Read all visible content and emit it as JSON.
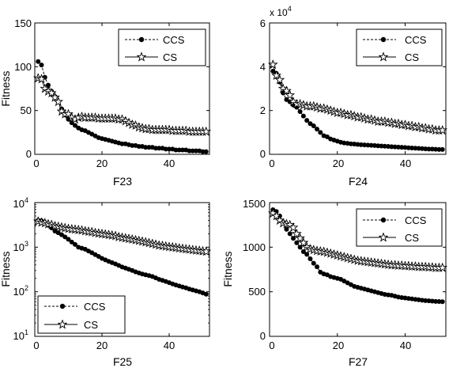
{
  "chart_data": [
    {
      "type": "line",
      "xlabel": "F23",
      "ylabel": "Fitness",
      "xlim": [
        0,
        52
      ],
      "ylim": [
        0,
        150
      ],
      "xticks": [
        "0",
        "20",
        "40"
      ],
      "yticks": [
        "0",
        "50",
        "100",
        "150"
      ],
      "y_scale": "linear",
      "legend_placement": "top-right",
      "series": [
        {
          "name": "CCS",
          "marker": "filled-dot",
          "line": "dashed",
          "x": [
            1,
            2,
            3,
            4,
            5,
            6,
            7,
            8,
            9,
            10,
            11,
            12,
            13,
            14,
            15,
            16,
            17,
            18,
            19,
            20,
            21,
            22,
            23,
            24,
            25,
            26,
            27,
            28,
            29,
            30,
            31,
            32,
            33,
            34,
            35,
            36,
            37,
            38,
            39,
            40,
            41,
            42,
            43,
            44,
            45,
            46,
            47,
            48,
            49,
            50,
            51
          ],
          "values": [
            106,
            102,
            88,
            79,
            72,
            66,
            60,
            52,
            45,
            40,
            36,
            33,
            30,
            28,
            27,
            25,
            23,
            21,
            19,
            18,
            17,
            16,
            15,
            14,
            13,
            12,
            12,
            11,
            10,
            10,
            9,
            9,
            8,
            8,
            8,
            7,
            7,
            7,
            6,
            6,
            6,
            5,
            5,
            5,
            5,
            4,
            4,
            4,
            4,
            3,
            3
          ]
        },
        {
          "name": "CS",
          "marker": "star",
          "line": "solid",
          "x": [
            1,
            2,
            3,
            4,
            5,
            6,
            7,
            8,
            9,
            10,
            11,
            12,
            13,
            14,
            15,
            16,
            17,
            18,
            19,
            20,
            21,
            22,
            23,
            24,
            25,
            26,
            27,
            28,
            29,
            30,
            31,
            32,
            33,
            34,
            35,
            36,
            37,
            38,
            39,
            40,
            41,
            42,
            43,
            44,
            45,
            46,
            47,
            48,
            49,
            50,
            51
          ],
          "values": [
            87,
            86,
            75,
            72,
            70,
            65,
            60,
            49,
            46,
            46,
            42,
            40,
            42,
            43,
            42,
            42,
            42,
            42,
            41,
            41,
            41,
            41,
            41,
            41,
            40,
            40,
            38,
            36,
            34,
            33,
            31,
            30,
            29,
            29,
            28,
            28,
            28,
            28,
            28,
            28,
            27,
            27,
            27,
            27,
            27,
            26,
            26,
            26,
            26,
            26,
            26
          ]
        }
      ]
    },
    {
      "type": "line",
      "xlabel": "F24",
      "ylabel": "",
      "xlim": [
        0,
        52
      ],
      "ylim": [
        0,
        60000
      ],
      "xticks": [
        "0",
        "20",
        "40"
      ],
      "yticks": [
        "0",
        "2",
        "4",
        "6"
      ],
      "y_multiplier_base": "x 10",
      "y_multiplier_exp": "4",
      "y_scale": "linear",
      "legend_placement": "top-right",
      "series": [
        {
          "name": "CCS",
          "marker": "filled-dot",
          "line": "dashed",
          "x": [
            1,
            2,
            3,
            4,
            5,
            6,
            7,
            8,
            9,
            10,
            11,
            12,
            13,
            14,
            15,
            16,
            17,
            18,
            19,
            20,
            21,
            22,
            23,
            24,
            25,
            26,
            27,
            28,
            29,
            30,
            31,
            32,
            33,
            34,
            35,
            36,
            37,
            38,
            39,
            40,
            41,
            42,
            43,
            44,
            45,
            46,
            47,
            48,
            49,
            50,
            51
          ],
          "values": [
            38000,
            37000,
            33000,
            28000,
            25000,
            24000,
            22500,
            21500,
            19500,
            17500,
            15500,
            14000,
            13000,
            11500,
            10000,
            8500,
            8000,
            7000,
            6500,
            6000,
            5500,
            5200,
            5000,
            4800,
            4700,
            4500,
            4400,
            4300,
            4200,
            4100,
            4000,
            3900,
            3800,
            3700,
            3600,
            3500,
            3400,
            3300,
            3200,
            3100,
            3000,
            2900,
            2800,
            2700,
            2600,
            2500,
            2400,
            2400,
            2300,
            2200,
            2200
          ]
        },
        {
          "name": "CS",
          "marker": "star",
          "line": "solid",
          "x": [
            1,
            2,
            3,
            4,
            5,
            6,
            7,
            8,
            9,
            10,
            11,
            12,
            13,
            14,
            15,
            16,
            17,
            18,
            19,
            20,
            21,
            22,
            23,
            24,
            25,
            26,
            27,
            28,
            29,
            30,
            31,
            32,
            33,
            34,
            35,
            36,
            37,
            38,
            39,
            40,
            41,
            42,
            43,
            44,
            45,
            46,
            47,
            48,
            49,
            50,
            51
          ],
          "values": [
            41000,
            36000,
            34000,
            30000,
            29000,
            27000,
            24000,
            23000,
            23000,
            22500,
            22000,
            22000,
            22000,
            21500,
            21000,
            21000,
            20500,
            20000,
            19500,
            19000,
            19000,
            18500,
            18000,
            18000,
            17500,
            17000,
            17000,
            16500,
            16000,
            16000,
            15500,
            15000,
            15000,
            15000,
            14500,
            14500,
            14000,
            14000,
            13500,
            13500,
            13000,
            13000,
            12500,
            12500,
            12000,
            12000,
            11500,
            11500,
            11000,
            11000,
            11000
          ]
        }
      ]
    },
    {
      "type": "line",
      "xlabel": "F25",
      "ylabel": "Fitness",
      "xlim": [
        0,
        52
      ],
      "ylim": [
        10,
        10000
      ],
      "xticks": [
        "0",
        "20",
        "40"
      ],
      "yticks_base": [
        "10",
        "10",
        "10",
        "10"
      ],
      "yticks_exp": [
        "1",
        "2",
        "3",
        "4"
      ],
      "y_scale": "log",
      "legend_placement": "bottom-left",
      "series": [
        {
          "name": "CCS",
          "marker": "filled-dot",
          "line": "dashed",
          "x": [
            1,
            2,
            3,
            4,
            5,
            6,
            7,
            8,
            9,
            10,
            11,
            12,
            13,
            14,
            15,
            16,
            17,
            18,
            19,
            20,
            21,
            22,
            23,
            24,
            25,
            26,
            27,
            28,
            29,
            30,
            31,
            32,
            33,
            34,
            35,
            36,
            37,
            38,
            39,
            40,
            41,
            42,
            43,
            44,
            45,
            46,
            47,
            48,
            49,
            50,
            51
          ],
          "values": [
            4000,
            3900,
            3600,
            3100,
            2700,
            2300,
            2100,
            1900,
            1700,
            1500,
            1300,
            1150,
            1000,
            950,
            900,
            820,
            750,
            680,
            620,
            560,
            520,
            480,
            450,
            420,
            390,
            360,
            340,
            320,
            300,
            280,
            265,
            250,
            240,
            230,
            220,
            205,
            190,
            180,
            170,
            160,
            150,
            142,
            135,
            128,
            122,
            115,
            110,
            105,
            100,
            94,
            88
          ]
        },
        {
          "name": "CS",
          "marker": "star",
          "line": "solid",
          "x": [
            1,
            2,
            3,
            4,
            5,
            6,
            7,
            8,
            9,
            10,
            11,
            12,
            13,
            14,
            15,
            16,
            17,
            18,
            19,
            20,
            21,
            22,
            23,
            24,
            25,
            26,
            27,
            28,
            29,
            30,
            31,
            32,
            33,
            34,
            35,
            36,
            37,
            38,
            39,
            40,
            41,
            42,
            43,
            44,
            45,
            46,
            47,
            48,
            49,
            50,
            51
          ],
          "values": [
            3800,
            3600,
            3500,
            3300,
            3200,
            3000,
            2900,
            2800,
            2700,
            2600,
            2550,
            2500,
            2450,
            2400,
            2300,
            2250,
            2200,
            2100,
            2050,
            2000,
            1950,
            1900,
            1850,
            1800,
            1700,
            1650,
            1600,
            1550,
            1500,
            1450,
            1400,
            1350,
            1300,
            1250,
            1200,
            1150,
            1100,
            1080,
            1050,
            1020,
            1000,
            980,
            950,
            930,
            910,
            890,
            870,
            850,
            840,
            820,
            800
          ]
        }
      ]
    },
    {
      "type": "line",
      "xlabel": "F27",
      "ylabel": "Fitness",
      "xlim": [
        0,
        52
      ],
      "ylim": [
        0,
        1500
      ],
      "xticks": [
        "0",
        "20",
        "40"
      ],
      "yticks": [
        "0",
        "500",
        "1000",
        "1500"
      ],
      "y_scale": "linear",
      "legend_placement": "top-right",
      "series": [
        {
          "name": "CCS",
          "marker": "filled-dot",
          "line": "dashed",
          "x": [
            1,
            2,
            3,
            4,
            5,
            6,
            7,
            8,
            9,
            10,
            11,
            12,
            13,
            14,
            15,
            16,
            17,
            18,
            19,
            20,
            21,
            22,
            23,
            24,
            25,
            26,
            27,
            28,
            29,
            30,
            31,
            32,
            33,
            34,
            35,
            36,
            37,
            38,
            39,
            40,
            41,
            42,
            43,
            44,
            45,
            46,
            47,
            48,
            49,
            50,
            51
          ],
          "values": [
            1420,
            1400,
            1350,
            1280,
            1200,
            1150,
            1100,
            1050,
            1000,
            950,
            920,
            870,
            820,
            780,
            720,
            700,
            690,
            670,
            660,
            650,
            640,
            620,
            600,
            580,
            560,
            550,
            540,
            530,
            520,
            510,
            500,
            490,
            480,
            470,
            465,
            460,
            450,
            440,
            435,
            430,
            425,
            420,
            415,
            410,
            405,
            400,
            398,
            395,
            392,
            390,
            388
          ]
        },
        {
          "name": "CS",
          "marker": "star",
          "line": "solid",
          "x": [
            1,
            2,
            3,
            4,
            5,
            6,
            7,
            8,
            9,
            10,
            11,
            12,
            13,
            14,
            15,
            16,
            17,
            18,
            19,
            20,
            21,
            22,
            23,
            24,
            25,
            26,
            27,
            28,
            29,
            30,
            31,
            32,
            33,
            34,
            35,
            36,
            37,
            38,
            39,
            40,
            41,
            42,
            43,
            44,
            45,
            46,
            47,
            48,
            49,
            50,
            51
          ],
          "values": [
            1380,
            1350,
            1300,
            1270,
            1260,
            1250,
            1220,
            1150,
            1100,
            1050,
            1000,
            980,
            970,
            960,
            955,
            950,
            940,
            930,
            920,
            910,
            900,
            890,
            880,
            870,
            860,
            850,
            845,
            840,
            835,
            830,
            825,
            820,
            815,
            810,
            805,
            800,
            800,
            795,
            795,
            790,
            790,
            785,
            785,
            780,
            780,
            780,
            775,
            775,
            770,
            770,
            770
          ]
        }
      ]
    }
  ]
}
